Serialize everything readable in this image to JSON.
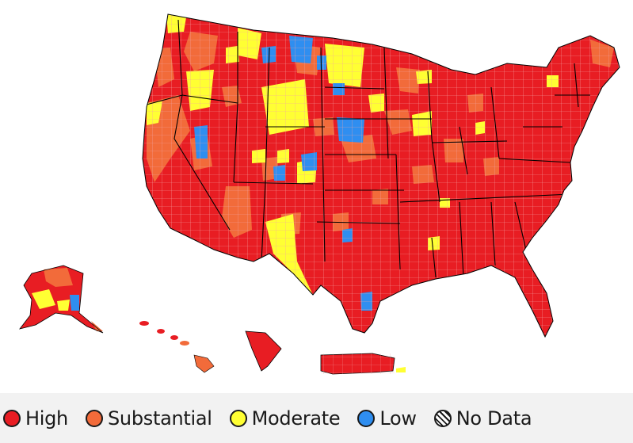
{
  "colors": {
    "high": "#e81d23",
    "substantial": "#f26b3a",
    "moderate": "#ffff33",
    "low": "#2f8ef0",
    "county_border": "#f4a3a3",
    "state_border": "#000000",
    "legend_bg": "#f2f2f2"
  },
  "legend": {
    "items": [
      {
        "key": "high",
        "label": "High",
        "color": "#e81d23"
      },
      {
        "key": "substantial",
        "label": "Substantial",
        "color": "#f26b3a"
      },
      {
        "key": "moderate",
        "label": "Moderate",
        "color": "#ffff33"
      },
      {
        "key": "low",
        "label": "Low",
        "color": "#2f8ef0"
      },
      {
        "key": "no_data",
        "label": "No Data",
        "color": "hatched"
      }
    ]
  }
}
